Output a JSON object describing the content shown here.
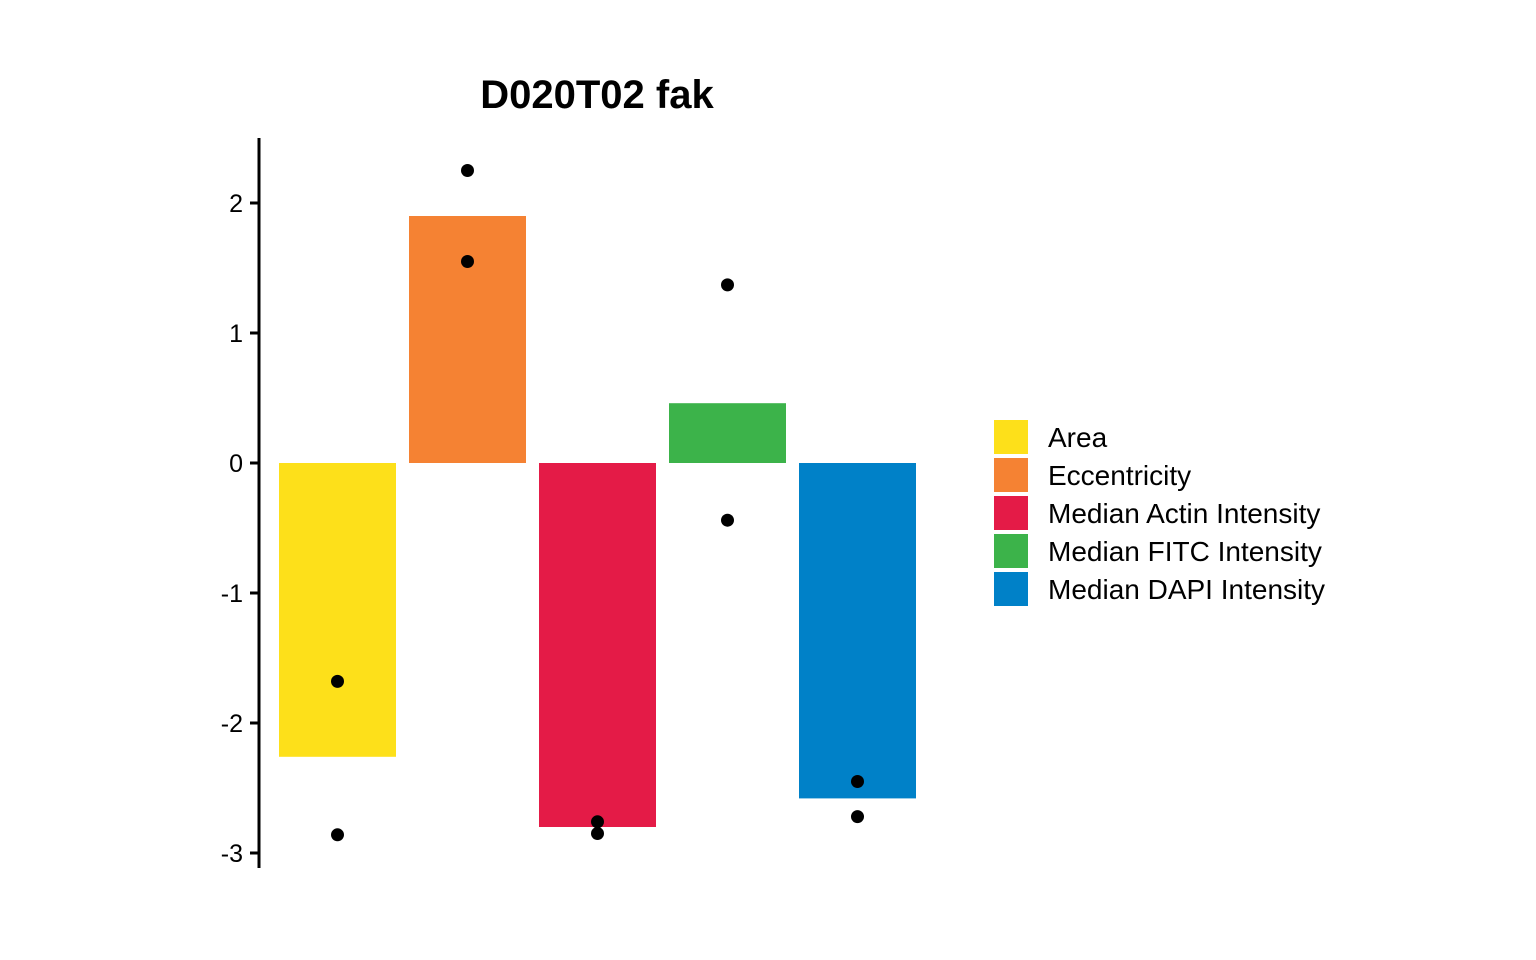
{
  "chart_data": {
    "type": "bar",
    "title": "D020T02 fak",
    "xlabel": "",
    "ylabel": "",
    "ylim": [
      -3.1,
      2.5
    ],
    "yticks": [
      -3,
      -2,
      -1,
      0,
      1,
      2
    ],
    "grid": false,
    "legend_position": "right",
    "categories": [
      "Area",
      "Eccentricity",
      "Median Actin Intensity",
      "Median FITC Intensity",
      "Median DAPI Intensity"
    ],
    "colors": [
      "#FDE01A",
      "#F58233",
      "#E41B47",
      "#3CB34A",
      "#0081C8"
    ],
    "values": [
      -2.26,
      1.9,
      -2.8,
      0.46,
      -2.58
    ],
    "points": [
      [
        -1.68,
        -2.86
      ],
      [
        2.25,
        1.55
      ],
      [
        -2.76,
        -2.85
      ],
      [
        1.37,
        -0.44
      ],
      [
        -2.45,
        -2.72
      ]
    ]
  }
}
